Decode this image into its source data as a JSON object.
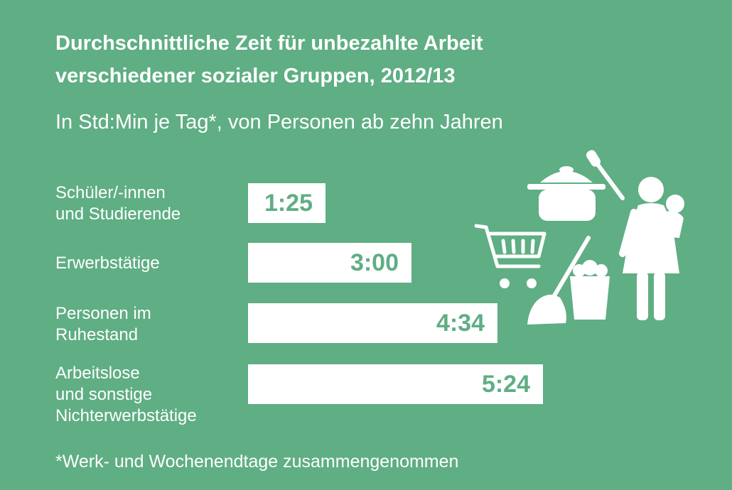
{
  "title_lines": [
    "Durchschnittliche Zeit für unbezahlte Arbeit",
    "verschiedener sozialer Gruppen, 2012/13"
  ],
  "subtitle": "In Std:Min je Tag*, von Personen ab zehn Jahren",
  "footnote": "*Werk- und Wochenendtage zusammengenommen",
  "colors": {
    "background": "#5fae84",
    "bar": "#ffffff",
    "value_text": "#5fae84"
  },
  "icons": [
    "cooking-pot-icon",
    "spatula-icon",
    "shopping-cart-icon",
    "bucket-icon",
    "mop-icon",
    "mother-with-child-icon"
  ],
  "chart_data": {
    "type": "bar",
    "orientation": "horizontal",
    "unit": "Std:Min",
    "categories": [
      [
        "Schüler/-innen",
        "und Studierende"
      ],
      [
        "Erwerbstätige"
      ],
      [
        "Personen im",
        "Ruhestand"
      ],
      [
        "Arbeitslose",
        "und sonstige",
        "Nichterwerbstätige"
      ]
    ],
    "labels": [
      "1:25",
      "3:00",
      "4:34",
      "5:24"
    ],
    "values_minutes": [
      85,
      180,
      274,
      324
    ],
    "title": "Durchschnittliche Zeit für unbezahlte Arbeit verschiedener sozialer Gruppen, 2012/13",
    "grid": false
  }
}
